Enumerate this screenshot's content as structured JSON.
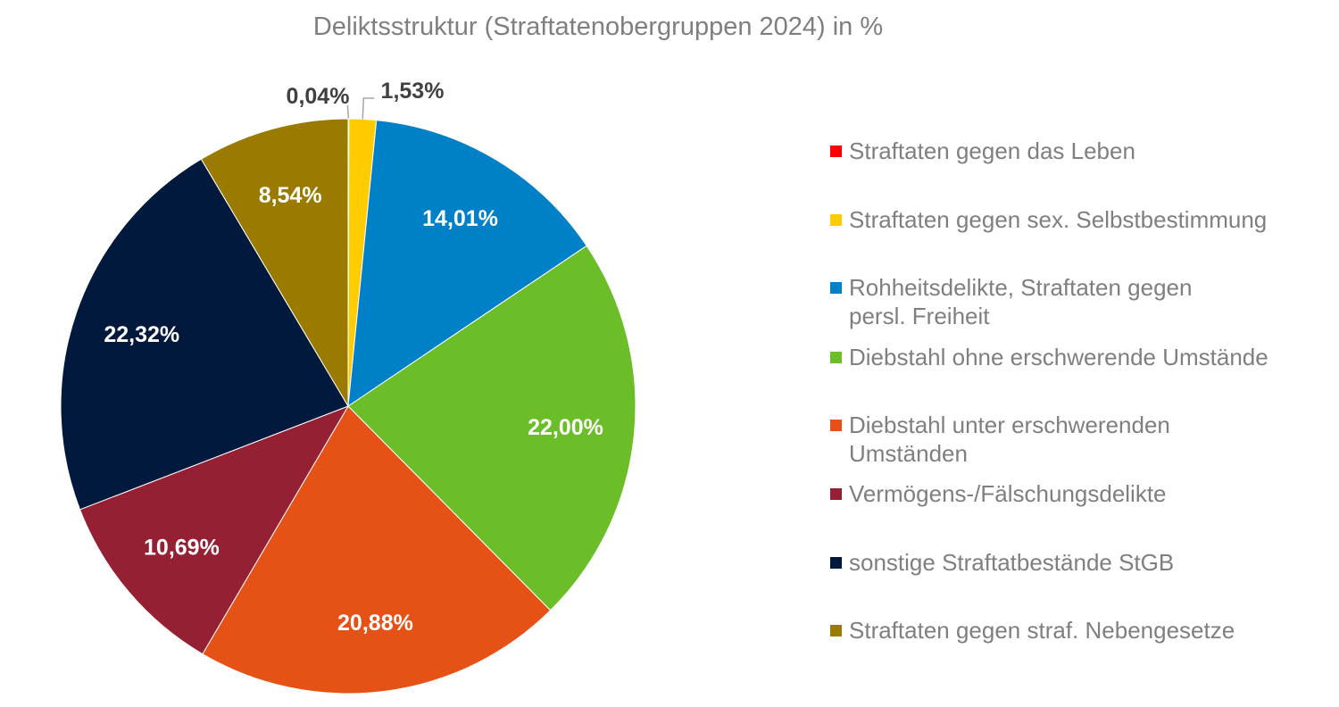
{
  "chart_data": {
    "type": "pie",
    "title": "Deliktsstruktur (Straftatenobergruppen 2024) in %",
    "start_angle": "12 o'clock, clockwise",
    "legend_position": "right",
    "slices": [
      {
        "name": "Straftaten gegen das Leben",
        "value": 0.04,
        "label": "0,04%",
        "color": "#FF0000"
      },
      {
        "name": "Straftaten gegen sex. Selbstbestimmung",
        "value": 1.53,
        "label": "1,53%",
        "color": "#FFCC00"
      },
      {
        "name": "Rohheitsdelikte, Straftaten gegen persl. Freiheit",
        "value": 14.01,
        "label": "14,01%",
        "color": "#0080C6"
      },
      {
        "name": "Diebstahl ohne erschwerende Umstände",
        "value": 22.0,
        "label": "22,00%",
        "color": "#6BBE27"
      },
      {
        "name": "Diebstahl unter erschwerenden Umständen",
        "value": 20.88,
        "label": "20,88%",
        "color": "#E65216"
      },
      {
        "name": "Vermögens-/Fälschungsdelikte",
        "value": 10.69,
        "label": "10,69%",
        "color": "#951F33"
      },
      {
        "name": "sonstige Straftatbestände StGB",
        "value": 22.32,
        "label": "22,32%",
        "color": "#00193D"
      },
      {
        "name": "Straftaten gegen straf. Nebengesetze",
        "value": 8.54,
        "label": "8,54%",
        "color": "#9A7B00"
      }
    ]
  }
}
